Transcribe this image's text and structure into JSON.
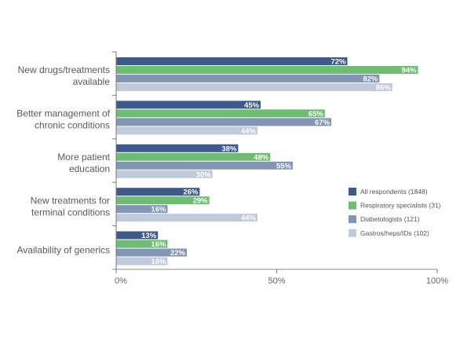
{
  "chart_data": {
    "type": "bar",
    "orientation": "horizontal",
    "title": "",
    "xlabel": "",
    "ylabel": "",
    "xlim": [
      0,
      100
    ],
    "x_ticks": [
      "0%",
      "50%",
      "100%"
    ],
    "grid": false,
    "legend_position": "right",
    "categories": [
      [
        "New drugs/treatments",
        "available"
      ],
      [
        "Better management of",
        "chronic conditions"
      ],
      [
        "More patient",
        "education"
      ],
      [
        "New treatments for",
        "terminal conditions"
      ],
      [
        "Availability of generics"
      ]
    ],
    "series": [
      {
        "name": "All respondents (1848)",
        "color": "#3d5a8a",
        "values": [
          72,
          45,
          38,
          26,
          13
        ]
      },
      {
        "name": "Respiratory specialists (31)",
        "color": "#6fbd72",
        "values": [
          94,
          65,
          48,
          29,
          16
        ]
      },
      {
        "name": "Diabetologists (121)",
        "color": "#8196b4",
        "values": [
          82,
          67,
          55,
          16,
          22
        ]
      },
      {
        "name": "Gastros/heps/IDs (102)",
        "color": "#bfcadb",
        "values": [
          86,
          44,
          30,
          44,
          16
        ]
      }
    ],
    "value_suffix": "%"
  }
}
